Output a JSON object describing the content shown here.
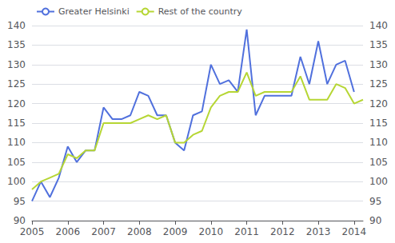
{
  "chart_data": {
    "type": "line",
    "legend": "upper left",
    "grid": true,
    "xlim": [
      2005,
      2014.25
    ],
    "xticks": [
      2005,
      2006,
      2007,
      2008,
      2009,
      2010,
      2011,
      2012,
      2013,
      2014
    ],
    "ylim": [
      90,
      140
    ],
    "yticks": [
      90,
      95,
      100,
      105,
      110,
      115,
      120,
      125,
      130,
      135,
      140
    ],
    "y2lim": [
      90,
      140
    ],
    "y2ticks": [
      90,
      95,
      100,
      105,
      110,
      115,
      120,
      125,
      130,
      135,
      140
    ],
    "series": [
      {
        "name": "Greater Helsinki",
        "x": [
          2005,
          2005.25,
          2005.5,
          2005.75,
          2006,
          2006.25,
          2006.5,
          2006.75,
          2007,
          2007.25,
          2007.5,
          2007.75,
          2008,
          2008.25,
          2008.5,
          2008.75,
          2009,
          2009.25,
          2009.5,
          2009.75,
          2010,
          2010.25,
          2010.5,
          2010.75,
          2011,
          2011.25,
          2011.5,
          2011.75,
          2012,
          2012.25,
          2012.5,
          2012.75,
          2013,
          2013.25,
          2013.5,
          2013.75,
          2014
        ],
        "values": [
          95.0,
          100.0,
          96.0,
          101.0,
          109.0,
          105.0,
          108.0,
          108.0,
          119.0,
          116.0,
          116.0,
          117.0,
          123.0,
          122.0,
          117.0,
          117.0,
          110.0,
          108.0,
          117.0,
          118.0,
          130.0,
          125.0,
          126.0,
          123.0,
          139.0,
          117.0,
          122.0,
          122.0,
          122.0,
          122.0,
          132.0,
          125.0,
          136.0,
          125.0,
          130.0,
          131.0,
          123.0
        ]
      },
      {
        "name": "Rest of the country",
        "x": [
          2005,
          2005.25,
          2005.5,
          2005.75,
          2006,
          2006.25,
          2006.5,
          2006.75,
          2007,
          2007.25,
          2007.5,
          2007.75,
          2008,
          2008.25,
          2008.5,
          2008.75,
          2009,
          2009.25,
          2009.5,
          2009.75,
          2010,
          2010.25,
          2010.5,
          2010.75,
          2011,
          2011.25,
          2011.5,
          2011.75,
          2012,
          2012.25,
          2012.5,
          2012.75,
          2013,
          2013.25,
          2013.5,
          2013.75,
          2014,
          2014.25
        ],
        "values": [
          98.0,
          100.0,
          101.0,
          102.0,
          107.0,
          106.0,
          108.0,
          108.0,
          115.0,
          115.0,
          115.0,
          115.0,
          116.0,
          117.0,
          116.0,
          117.0,
          110.0,
          110.0,
          112.0,
          113.0,
          119.0,
          122.0,
          123.0,
          123.0,
          128.0,
          122.0,
          123.0,
          123.0,
          123.0,
          123.0,
          127.0,
          121.0,
          121.0,
          121.0,
          125.0,
          124.0,
          120.0,
          121.0
        ]
      }
    ]
  }
}
